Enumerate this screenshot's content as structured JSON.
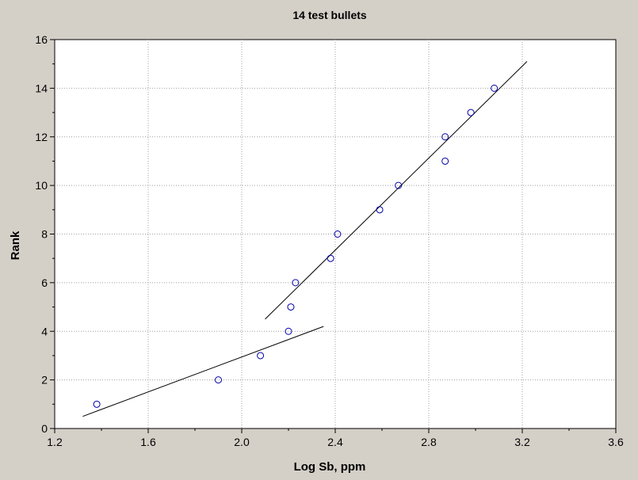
{
  "chart_data": {
    "type": "scatter",
    "title": "14 test bullets",
    "xlabel": "Log Sb, ppm",
    "ylabel": "Rank",
    "xlim": [
      1.2,
      3.6
    ],
    "ylim": [
      0,
      16
    ],
    "x_ticks": [
      "1.2",
      "1.6",
      "2.0",
      "2.4",
      "2.8",
      "3.2",
      "3.6"
    ],
    "y_ticks": [
      "0",
      "2",
      "4",
      "6",
      "8",
      "10",
      "12",
      "14",
      "16"
    ],
    "grid": true,
    "series": [
      {
        "points": [
          {
            "x": 1.38,
            "y": 1
          },
          {
            "x": 1.9,
            "y": 2
          },
          {
            "x": 2.08,
            "y": 3
          },
          {
            "x": 2.2,
            "y": 4
          },
          {
            "x": 2.21,
            "y": 5
          },
          {
            "x": 2.23,
            "y": 6
          },
          {
            "x": 2.38,
            "y": 7
          },
          {
            "x": 2.41,
            "y": 8
          },
          {
            "x": 2.59,
            "y": 9
          },
          {
            "x": 2.67,
            "y": 10
          },
          {
            "x": 2.87,
            "y": 11
          },
          {
            "x": 2.87,
            "y": 12
          },
          {
            "x": 2.98,
            "y": 13
          },
          {
            "x": 3.08,
            "y": 14
          }
        ]
      }
    ],
    "fit_lines": [
      {
        "x": [
          1.32,
          2.35
        ],
        "y": [
          0.5,
          4.2
        ]
      },
      {
        "x": [
          2.1,
          3.22
        ],
        "y": [
          4.5,
          15.1
        ]
      }
    ],
    "colors": {
      "marker": "#0000aa",
      "line": "#000000",
      "grid": "#a0a0a0",
      "plot_background": "#ffffff",
      "background": "#d4d0c8"
    }
  }
}
